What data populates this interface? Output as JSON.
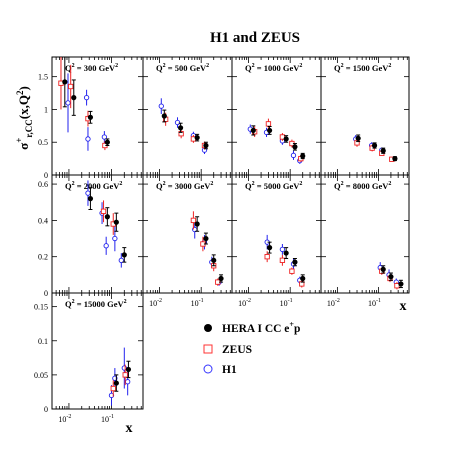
{
  "chart_data": {
    "type": "scatter",
    "title": "H1 and ZEUS",
    "ylabel": "σ",
    "ylabel_sup": "+",
    "ylabel_sub": "r,CC",
    "ylabel_args": "(x,Q",
    "ylabel_args_sup": "2",
    "ylabel_args_end": ")",
    "xlabel": "x",
    "xscale": "log",
    "xlim": [
      0.004,
      0.55
    ],
    "xtick_base": "10",
    "xtick_exps": [
      "-2",
      "-1"
    ],
    "qlabel_prefix": "Q",
    "qlabel_sup": "2",
    "qlabel_eq": " = ",
    "qlabel_unit": "GeV",
    "qlabel_unit_sup": "2",
    "legend": {
      "position": "lower-right",
      "entries": [
        {
          "label": "HERA I CC e",
          "sup": "+",
          "tail": "p",
          "marker": "filled-circle",
          "color": "#000000"
        },
        {
          "label": "ZEUS",
          "marker": "open-square",
          "color": "#ff3333"
        },
        {
          "label": "H1",
          "marker": "open-circle",
          "color": "#3333ff"
        }
      ]
    },
    "colors": {
      "combined": "#000000",
      "zeus": "#ee2222",
      "h1": "#2222ee"
    },
    "rows": [
      {
        "ylim": [
          0,
          1.8
        ],
        "ticks": [
          0,
          0.5,
          1,
          1.5
        ],
        "tick_labels": [
          "0",
          "0.5",
          "1",
          "1.5"
        ]
      },
      {
        "ylim": [
          0,
          0.65
        ],
        "ticks": [
          0,
          0.2,
          0.4,
          0.6
        ],
        "tick_labels": [
          "0",
          "0.2",
          "0.4",
          "0.6"
        ]
      },
      {
        "ylim": [
          0,
          0.17
        ],
        "ticks": [
          0,
          0.05,
          0.1,
          0.15
        ],
        "tick_labels": [
          "0",
          "0.05",
          "0.1",
          "0.15"
        ]
      }
    ],
    "panels": [
      {
        "q2": "300",
        "row": 0,
        "col": 0,
        "combined": [
          {
            "x": 0.008,
            "y": 1.42,
            "e": 0.38
          },
          {
            "x": 0.013,
            "y": 1.18,
            "e": 0.27
          },
          {
            "x": 0.032,
            "y": 0.88,
            "e": 0.09
          },
          {
            "x": 0.08,
            "y": 0.5,
            "e": 0.05
          }
        ],
        "zeus": [
          {
            "x": 0.0065,
            "y": 1.4,
            "e": 0.4
          },
          {
            "x": 0.011,
            "y": 1.35,
            "e": 0.33
          },
          {
            "x": 0.028,
            "y": 0.86,
            "e": 0.12
          },
          {
            "x": 0.07,
            "y": 0.45,
            "e": 0.07
          }
        ],
        "h1": [
          {
            "x": 0.0095,
            "y": 1.1,
            "e": 0.45
          },
          {
            "x": 0.026,
            "y": 1.18,
            "e": 0.12
          },
          {
            "x": 0.028,
            "y": 0.55,
            "e": 0.18
          },
          {
            "x": 0.068,
            "y": 0.58,
            "e": 0.09
          }
        ]
      },
      {
        "q2": "500",
        "row": 0,
        "col": 1,
        "combined": [
          {
            "x": 0.013,
            "y": 0.9,
            "e": 0.09
          },
          {
            "x": 0.032,
            "y": 0.72,
            "e": 0.07
          },
          {
            "x": 0.08,
            "y": 0.57,
            "e": 0.05
          },
          {
            "x": 0.13,
            "y": 0.45,
            "e": 0.05
          }
        ],
        "zeus": [
          {
            "x": 0.014,
            "y": 0.85,
            "e": 0.1
          },
          {
            "x": 0.033,
            "y": 0.63,
            "e": 0.07
          },
          {
            "x": 0.065,
            "y": 0.55,
            "e": 0.06
          },
          {
            "x": 0.12,
            "y": 0.45,
            "e": 0.06
          }
        ],
        "h1": [
          {
            "x": 0.011,
            "y": 1.05,
            "e": 0.12
          },
          {
            "x": 0.027,
            "y": 0.8,
            "e": 0.08
          },
          {
            "x": 0.065,
            "y": 0.6,
            "e": 0.06
          },
          {
            "x": 0.12,
            "y": 0.38,
            "e": 0.06
          }
        ]
      },
      {
        "q2": "1000",
        "row": 0,
        "col": 2,
        "combined": [
          {
            "x": 0.013,
            "y": 0.68,
            "e": 0.07
          },
          {
            "x": 0.032,
            "y": 0.68,
            "e": 0.06
          },
          {
            "x": 0.08,
            "y": 0.55,
            "e": 0.05
          },
          {
            "x": 0.13,
            "y": 0.43,
            "e": 0.05
          },
          {
            "x": 0.2,
            "y": 0.29,
            "e": 0.04
          }
        ],
        "zeus": [
          {
            "x": 0.014,
            "y": 0.66,
            "e": 0.08
          },
          {
            "x": 0.03,
            "y": 0.78,
            "e": 0.08
          },
          {
            "x": 0.065,
            "y": 0.58,
            "e": 0.06
          },
          {
            "x": 0.11,
            "y": 0.48,
            "e": 0.06
          },
          {
            "x": 0.18,
            "y": 0.25,
            "e": 0.05
          }
        ],
        "h1": [
          {
            "x": 0.011,
            "y": 0.7,
            "e": 0.07
          },
          {
            "x": 0.027,
            "y": 0.65,
            "e": 0.07
          },
          {
            "x": 0.065,
            "y": 0.52,
            "e": 0.06
          },
          {
            "x": 0.12,
            "y": 0.3,
            "e": 0.07
          },
          {
            "x": 0.17,
            "y": 0.22,
            "e": 0.05
          }
        ]
      },
      {
        "q2": "1500",
        "row": 0,
        "col": 3,
        "combined": [
          {
            "x": 0.032,
            "y": 0.56,
            "e": 0.05
          },
          {
            "x": 0.08,
            "y": 0.45,
            "e": 0.04
          },
          {
            "x": 0.13,
            "y": 0.37,
            "e": 0.04
          },
          {
            "x": 0.25,
            "y": 0.25,
            "e": 0.03
          }
        ],
        "zeus": [
          {
            "x": 0.03,
            "y": 0.49,
            "e": 0.06
          },
          {
            "x": 0.07,
            "y": 0.41,
            "e": 0.05
          },
          {
            "x": 0.12,
            "y": 0.33,
            "e": 0.04
          },
          {
            "x": 0.21,
            "y": 0.24,
            "e": 0.03
          }
        ],
        "h1": [
          {
            "x": 0.028,
            "y": 0.55,
            "e": 0.06
          },
          {
            "x": 0.068,
            "y": 0.45,
            "e": 0.05
          },
          {
            "x": 0.12,
            "y": 0.38,
            "e": 0.04
          }
        ]
      },
      {
        "q2": "2000",
        "row": 1,
        "col": 0,
        "combined": [
          {
            "x": 0.032,
            "y": 0.52,
            "e": 0.06
          },
          {
            "x": 0.08,
            "y": 0.42,
            "e": 0.05
          },
          {
            "x": 0.13,
            "y": 0.39,
            "e": 0.05
          },
          {
            "x": 0.2,
            "y": 0.21,
            "e": 0.04
          }
        ],
        "zeus": [
          {
            "x": 0.065,
            "y": 0.45,
            "e": 0.06
          },
          {
            "x": 0.11,
            "y": 0.38,
            "e": 0.06
          }
        ],
        "h1": [
          {
            "x": 0.028,
            "y": 0.55,
            "e": 0.07
          },
          {
            "x": 0.06,
            "y": 0.44,
            "e": 0.06
          },
          {
            "x": 0.075,
            "y": 0.26,
            "e": 0.05
          },
          {
            "x": 0.12,
            "y": 0.3,
            "e": 0.07
          },
          {
            "x": 0.17,
            "y": 0.18,
            "e": 0.04
          }
        ]
      },
      {
        "q2": "3000",
        "row": 1,
        "col": 1,
        "combined": [
          {
            "x": 0.08,
            "y": 0.38,
            "e": 0.04
          },
          {
            "x": 0.13,
            "y": 0.3,
            "e": 0.03
          },
          {
            "x": 0.2,
            "y": 0.18,
            "e": 0.03
          },
          {
            "x": 0.3,
            "y": 0.08,
            "e": 0.02
          }
        ],
        "zeus": [
          {
            "x": 0.065,
            "y": 0.4,
            "e": 0.05
          },
          {
            "x": 0.11,
            "y": 0.27,
            "e": 0.04
          },
          {
            "x": 0.2,
            "y": 0.15,
            "e": 0.03
          },
          {
            "x": 0.25,
            "y": 0.06,
            "e": 0.02
          }
        ],
        "h1": [
          {
            "x": 0.07,
            "y": 0.35,
            "e": 0.05
          },
          {
            "x": 0.12,
            "y": 0.28,
            "e": 0.04
          },
          {
            "x": 0.18,
            "y": 0.17,
            "e": 0.03
          },
          {
            "x": 0.27,
            "y": 0.06,
            "e": 0.02
          }
        ]
      },
      {
        "q2": "5000",
        "row": 1,
        "col": 2,
        "combined": [
          {
            "x": 0.032,
            "y": 0.25,
            "e": 0.03
          },
          {
            "x": 0.08,
            "y": 0.22,
            "e": 0.03
          },
          {
            "x": 0.13,
            "y": 0.17,
            "e": 0.02
          },
          {
            "x": 0.2,
            "y": 0.08,
            "e": 0.02
          }
        ],
        "zeus": [
          {
            "x": 0.028,
            "y": 0.2,
            "e": 0.03
          },
          {
            "x": 0.065,
            "y": 0.18,
            "e": 0.03
          },
          {
            "x": 0.11,
            "y": 0.12,
            "e": 0.02
          },
          {
            "x": 0.19,
            "y": 0.05,
            "e": 0.02
          }
        ],
        "h1": [
          {
            "x": 0.028,
            "y": 0.28,
            "e": 0.04
          },
          {
            "x": 0.065,
            "y": 0.24,
            "e": 0.03
          },
          {
            "x": 0.12,
            "y": 0.16,
            "e": 0.03
          },
          {
            "x": 0.17,
            "y": 0.07,
            "e": 0.02
          }
        ]
      },
      {
        "q2": "8000",
        "row": 1,
        "col": 3,
        "combined": [
          {
            "x": 0.13,
            "y": 0.13,
            "e": 0.02
          },
          {
            "x": 0.2,
            "y": 0.09,
            "e": 0.02
          },
          {
            "x": 0.35,
            "y": 0.05,
            "e": 0.02
          }
        ],
        "zeus": [
          {
            "x": 0.12,
            "y": 0.12,
            "e": 0.02
          },
          {
            "x": 0.19,
            "y": 0.08,
            "e": 0.02
          },
          {
            "x": 0.28,
            "y": 0.04,
            "e": 0.02
          }
        ],
        "h1": [
          {
            "x": 0.11,
            "y": 0.14,
            "e": 0.03
          },
          {
            "x": 0.18,
            "y": 0.1,
            "e": 0.03
          },
          {
            "x": 0.27,
            "y": 0.06,
            "e": 0.02
          }
        ]
      },
      {
        "q2": "15000",
        "row": 2,
        "col": 0,
        "combined": [
          {
            "x": 0.13,
            "y": 0.038,
            "e": 0.012
          },
          {
            "x": 0.25,
            "y": 0.058,
            "e": 0.012
          }
        ],
        "zeus": [
          {
            "x": 0.11,
            "y": 0.03,
            "e": 0.012
          },
          {
            "x": 0.21,
            "y": 0.05,
            "e": 0.015
          }
        ],
        "h1": [
          {
            "x": 0.1,
            "y": 0.02,
            "e": 0.015
          },
          {
            "x": 0.12,
            "y": 0.045,
            "e": 0.015
          },
          {
            "x": 0.2,
            "y": 0.06,
            "e": 0.03
          },
          {
            "x": 0.24,
            "y": 0.04,
            "e": 0.02
          }
        ]
      }
    ]
  }
}
